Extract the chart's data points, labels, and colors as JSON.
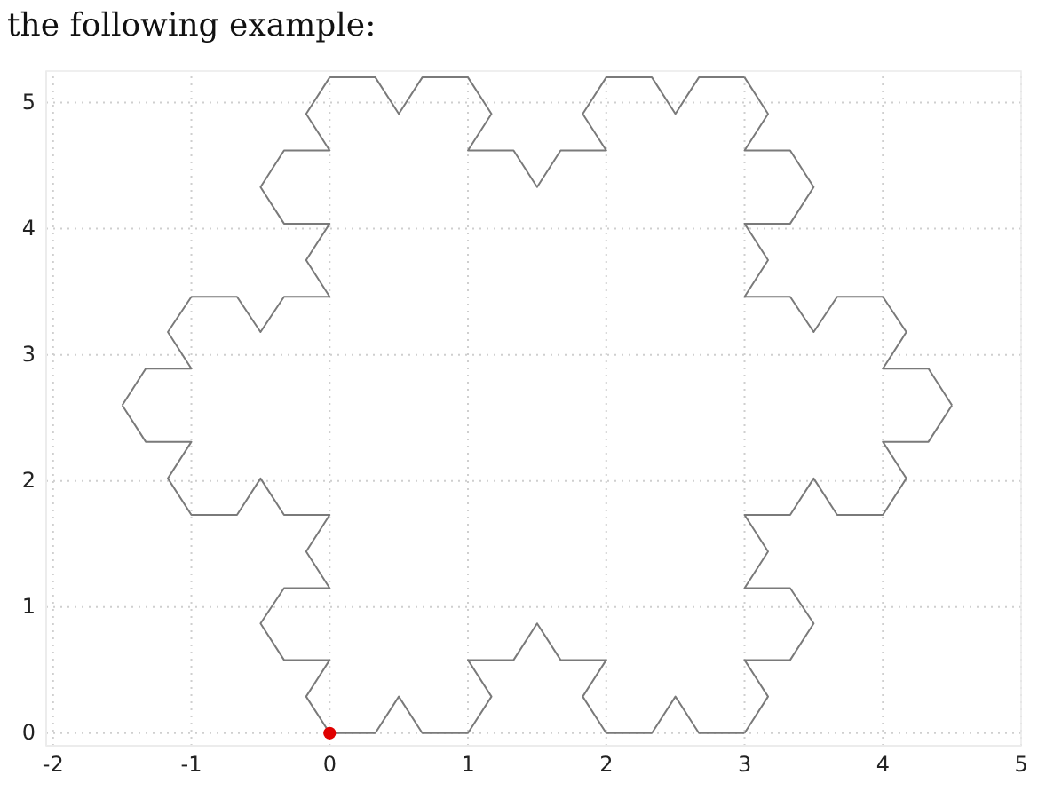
{
  "chart_data": {
    "type": "line",
    "annotations": [
      "the following example:"
    ],
    "xlim": [
      -2.05,
      5
    ],
    "ylim": [
      -0.1,
      5.25
    ],
    "xticks": [
      -2,
      -1,
      0,
      1,
      2,
      3,
      4,
      5
    ],
    "yticks": [
      0,
      1,
      2,
      3,
      4,
      5
    ],
    "grid": true,
    "line_style": "solid",
    "series": [
      {
        "type": "line",
        "color": "#7a7a7a",
        "x": [
          0,
          0.33,
          0.5,
          0.67,
          1,
          1.17,
          1,
          1.33,
          1.5,
          1.67,
          2,
          1.83,
          2,
          2.33,
          2.5,
          2.67,
          3
        ],
        "values": [
          0,
          0,
          0.29,
          0,
          0,
          0.29,
          0.58,
          0.58,
          0.87,
          0.58,
          0.58,
          0.29,
          0,
          0,
          0.29,
          0,
          0
        ]
      },
      {
        "type": "line",
        "color": "#7a7a7a",
        "x": [
          3,
          3.17,
          3,
          3.33,
          3.5,
          3.33,
          3,
          3.17,
          3,
          3.33,
          3.5,
          3.67,
          4,
          4.17,
          4,
          4.33,
          4.5
        ],
        "values": [
          0,
          0.29,
          0.58,
          0.58,
          0.87,
          1.15,
          1.15,
          1.44,
          1.73,
          1.73,
          2.02,
          1.73,
          1.73,
          2.02,
          2.31,
          2.31,
          2.6
        ]
      },
      {
        "type": "line",
        "color": "#7a7a7a",
        "x": [
          4.5,
          4.33,
          4,
          4.17,
          4,
          3.67,
          3.5,
          3.33,
          3,
          3.17,
          3,
          3.33,
          3.5,
          3.33,
          3,
          3.17,
          3
        ],
        "values": [
          2.6,
          2.89,
          2.89,
          3.18,
          3.46,
          3.46,
          3.18,
          3.46,
          3.46,
          3.75,
          4.04,
          4.04,
          4.33,
          4.62,
          4.62,
          4.91,
          5.2
        ]
      },
      {
        "type": "line",
        "color": "#7a7a7a",
        "x": [
          3,
          2.67,
          2.5,
          2.33,
          2,
          1.83,
          2,
          1.67,
          1.5,
          1.33,
          1,
          1.17,
          1,
          0.67,
          0.5,
          0.33,
          0
        ],
        "values": [
          5.2,
          5.2,
          4.91,
          5.2,
          5.2,
          4.91,
          4.62,
          4.62,
          4.33,
          4.62,
          4.62,
          4.91,
          5.2,
          5.2,
          4.91,
          5.2,
          5.2
        ]
      },
      {
        "type": "line",
        "color": "#7a7a7a",
        "x": [
          0,
          -0.17,
          0,
          -0.33,
          -0.5,
          -0.33,
          0,
          -0.17,
          0,
          -0.33,
          -0.5,
          -0.67,
          -1,
          -1.17,
          -1,
          -1.33,
          -1.5
        ],
        "values": [
          5.2,
          4.91,
          4.62,
          4.62,
          4.33,
          4.04,
          4.04,
          3.75,
          3.46,
          3.46,
          3.18,
          3.46,
          3.46,
          3.18,
          2.89,
          2.89,
          2.6
        ]
      },
      {
        "type": "line",
        "color": "#7a7a7a",
        "x": [
          -1.5,
          -1.33,
          -1,
          -1.17,
          -1,
          -0.67,
          -0.5,
          -0.33,
          0,
          -0.17,
          0,
          -0.33,
          -0.5,
          -0.33,
          0,
          -0.17,
          0
        ],
        "values": [
          2.6,
          2.31,
          2.31,
          2.02,
          1.73,
          1.73,
          2.02,
          1.73,
          1.73,
          1.44,
          1.15,
          1.15,
          0.87,
          0.58,
          0.58,
          0.29,
          0
        ]
      },
      {
        "type": "scatter",
        "color": "#e00000",
        "marker": "circle",
        "x": [
          0
        ],
        "values": [
          0
        ]
      }
    ]
  }
}
